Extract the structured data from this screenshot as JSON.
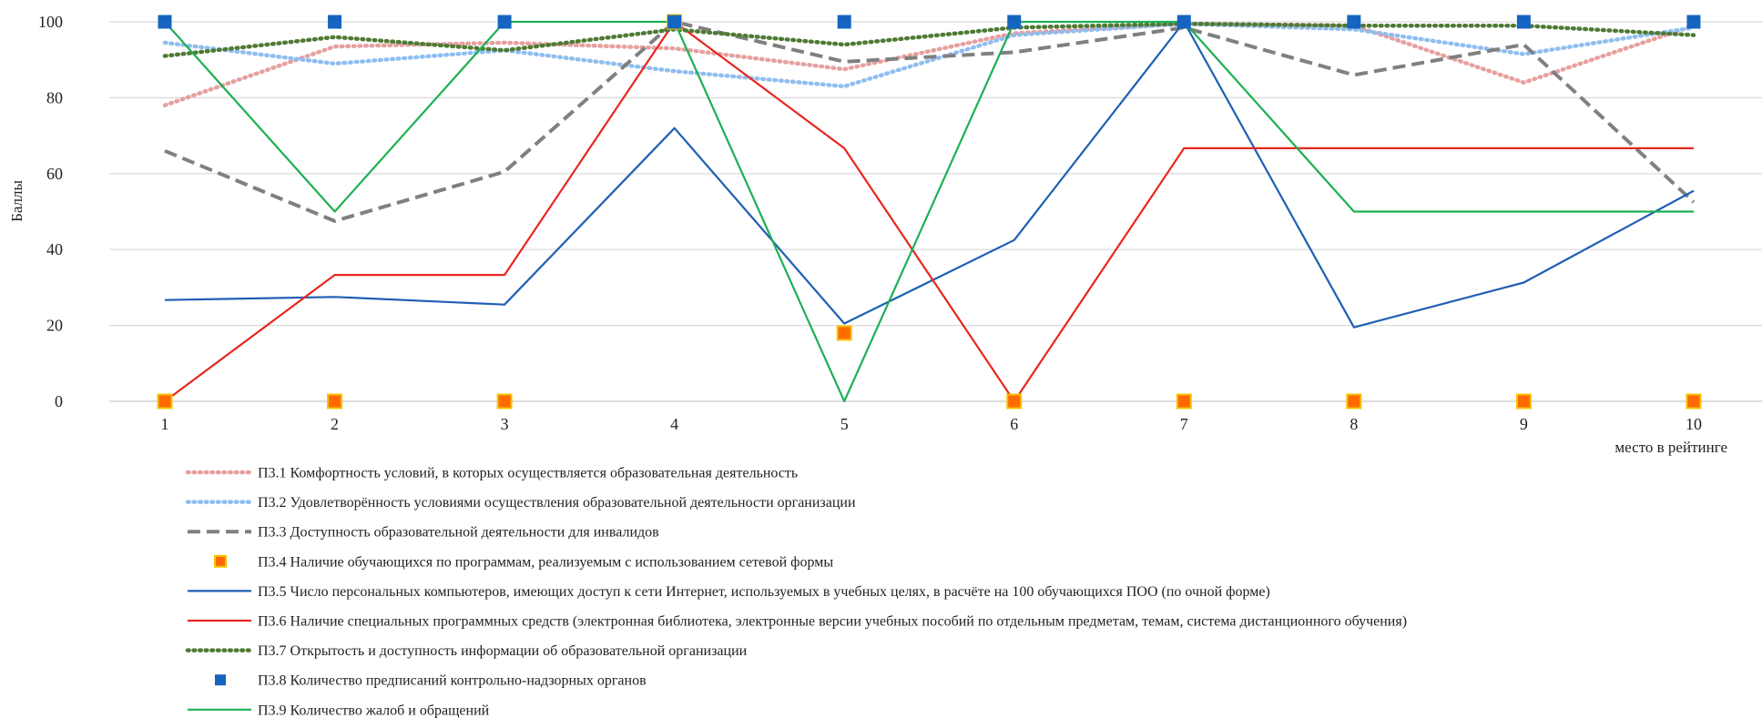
{
  "chart_data": {
    "type": "line",
    "ylabel": "Баллы",
    "xlabel": "место в рейтинге",
    "ylim": [
      0,
      100
    ],
    "yticks": [
      "0",
      "20",
      "40",
      "60",
      "80",
      "100"
    ],
    "categories": [
      "1",
      "2",
      "3",
      "4",
      "5",
      "6",
      "7",
      "8",
      "9",
      "10"
    ],
    "grid": "horizontal",
    "legend_position": "bottom",
    "series": [
      {
        "name": "П3.1 Комфортность условий, в которых осуществляется образовательная деятельность",
        "style": "dotted",
        "color": "#e6a0a0",
        "marker": "none",
        "values": [
          78,
          93.5,
          94.5,
          93,
          87.5,
          97,
          99.5,
          99,
          84,
          99
        ]
      },
      {
        "name": "П3.2 Удовлетворённость условиями осуществления образовательной деятельности организации",
        "style": "dotted",
        "color": "#8fbef0",
        "marker": "none",
        "values": [
          94.5,
          89,
          92.5,
          87,
          83,
          96.5,
          99.5,
          98,
          91.5,
          98.5
        ]
      },
      {
        "name": "П3.3 Доступность образовательной деятельности для инвалидов",
        "style": "dashed",
        "color": "#808080",
        "marker": "none",
        "values": [
          66,
          47.5,
          60.5,
          100,
          89.5,
          92,
          98.5,
          86,
          94,
          52.5
        ]
      },
      {
        "name": "П3.4 Наличие обучающихся по программам, реализуемым с использованием сетевой формы",
        "style": "none",
        "color": "#ff6a00",
        "marker": "square-orange",
        "values": [
          0,
          0,
          0,
          100,
          18,
          0,
          0,
          0,
          0,
          0
        ]
      },
      {
        "name": "П3.5 Число персональных компьютеров, имеющих доступ к сети Интернет, используемых в учебных целях, в расчёте на 100 обучающихся ПОО (по очной форме)",
        "style": "solid",
        "color": "#1f5fb4",
        "marker": "none",
        "values": [
          26.7,
          27.5,
          25.5,
          72,
          20.5,
          42.5,
          100,
          19.5,
          31.3,
          55.5
        ]
      },
      {
        "name": "П3.6 Наличие специальных программных средств (электронная библиотека, электронные версии учебных пособий по отдельным предметам, темам, система дистанционного обучения)",
        "style": "solid",
        "color": "#e8271f",
        "marker": "none",
        "values": [
          0,
          33.3,
          33.3,
          100,
          66.7,
          0,
          66.7,
          66.7,
          66.7,
          66.7
        ]
      },
      {
        "name": "П3.7 Открытость и доступность информации об образовательной организации",
        "style": "dotted",
        "color": "#4e7a34",
        "marker": "none",
        "values": [
          91,
          96,
          92.5,
          98,
          94,
          98.5,
          99.5,
          99,
          99,
          96.5
        ]
      },
      {
        "name": "П3.8 Количество предписаний контрольно-надзорных органов",
        "style": "none",
        "color": "#1565c0",
        "marker": "square-blue",
        "values": [
          100,
          100,
          100,
          100,
          100,
          100,
          100,
          100,
          100,
          100
        ]
      },
      {
        "name": "П3.9 Количество жалоб и обращений",
        "style": "solid",
        "color": "#1db054",
        "marker": "none",
        "values": [
          100,
          50,
          100,
          100,
          0,
          100,
          100,
          50,
          50,
          50
        ]
      }
    ]
  }
}
